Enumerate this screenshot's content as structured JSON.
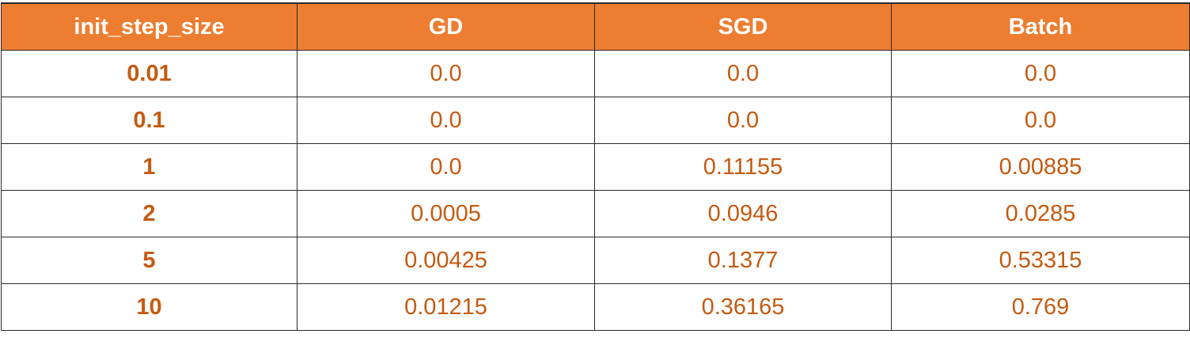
{
  "table": {
    "headers": [
      "init_step_size",
      "GD",
      "SGD",
      "Batch"
    ],
    "rows": [
      [
        "0.01",
        "0.0",
        "0.0",
        "0.0"
      ],
      [
        "0.1",
        "0.0",
        "0.0",
        "0.0"
      ],
      [
        "1",
        "0.0",
        "0.11155",
        "0.00885"
      ],
      [
        "2",
        "0.0005",
        "0.0946",
        "0.0285"
      ],
      [
        "5",
        "0.00425",
        "0.1377",
        "0.53315"
      ],
      [
        "10",
        "0.01215",
        "0.36165",
        "0.769"
      ]
    ]
  },
  "colors": {
    "header_bg": "#ED7D31",
    "header_text": "#FFFFFF",
    "cell_text": "#C55A11",
    "border": "#2B2B2B"
  }
}
